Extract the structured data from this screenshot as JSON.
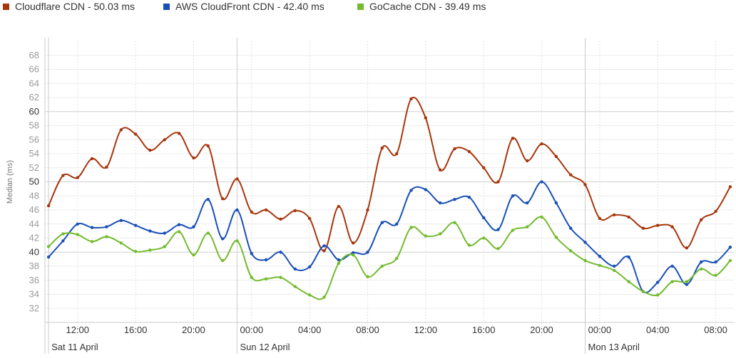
{
  "legend": [
    {
      "name": "Cloudflare CDN - 50.03 ms",
      "color": "#a8360c"
    },
    {
      "name": "AWS CloudFront CDN - 42.40 ms",
      "color": "#1950b8"
    },
    {
      "name": "GoCache CDN - 39.49 ms",
      "color": "#73bb2e"
    }
  ],
  "chart_data": {
    "type": "line",
    "ylabel": "Median (ms)",
    "ylim": [
      30,
      70
    ],
    "yticks": [
      32,
      34,
      36,
      38,
      40,
      42,
      44,
      46,
      48,
      50,
      52,
      54,
      56,
      58,
      60,
      62,
      64,
      66,
      68
    ],
    "major_yticks": [
      40,
      50,
      60
    ],
    "x_unit": "hours since Sat 11 April 00:00",
    "xlim": [
      9.75,
      57.25
    ],
    "time_labels": [
      {
        "h": 12,
        "label": "12:00"
      },
      {
        "h": 16,
        "label": "16:00"
      },
      {
        "h": 20,
        "label": "20:00"
      },
      {
        "h": 24,
        "label": "00:00"
      },
      {
        "h": 28,
        "label": "04:00"
      },
      {
        "h": 32,
        "label": "08:00"
      },
      {
        "h": 36,
        "label": "12:00"
      },
      {
        "h": 40,
        "label": "16:00"
      },
      {
        "h": 44,
        "label": "20:00"
      },
      {
        "h": 48,
        "label": "00:00"
      },
      {
        "h": 52,
        "label": "04:00"
      },
      {
        "h": 56,
        "label": "08:00"
      }
    ],
    "day_labels": [
      {
        "h": 10,
        "label": "Sat 11 April"
      },
      {
        "h": 23,
        "label": "Sun 12 April"
      },
      {
        "h": 47,
        "label": "Mon 13 April"
      }
    ],
    "x": [
      10,
      11,
      12,
      13,
      14,
      15,
      16,
      17,
      18,
      19,
      20,
      21,
      22,
      23,
      24,
      25,
      26,
      27,
      28,
      29,
      30,
      31,
      32,
      33,
      34,
      35,
      36,
      37,
      38,
      39,
      40,
      41,
      42,
      43,
      44,
      45,
      46,
      47,
      48,
      49,
      50,
      51,
      52,
      53,
      54,
      55,
      56,
      57
    ],
    "series": [
      {
        "name": "Cloudflare CDN",
        "color": "#a8360c",
        "values": [
          46.6,
          50.9,
          50.6,
          53.3,
          52.1,
          57.4,
          56.8,
          54.5,
          56.0,
          56.9,
          53.4,
          55.1,
          47.6,
          50.4,
          45.7,
          46.0,
          44.7,
          45.9,
          44.8,
          40.2,
          46.5,
          41.3,
          46.0,
          54.8,
          54.0,
          61.8,
          59.1,
          51.7,
          54.7,
          54.3,
          52.0,
          50.0,
          56.2,
          53.0,
          55.4,
          53.6,
          51.0,
          49.6,
          44.8,
          45.3,
          45.0,
          43.4,
          43.8,
          43.6,
          40.6,
          44.6,
          45.8,
          49.3
        ]
      },
      {
        "name": "AWS CloudFront CDN",
        "color": "#1950b8",
        "values": [
          39.3,
          41.6,
          44.0,
          43.5,
          43.6,
          44.5,
          43.8,
          43.0,
          42.7,
          43.9,
          43.6,
          47.5,
          41.9,
          46.0,
          39.8,
          38.9,
          40.0,
          37.6,
          37.9,
          40.9,
          38.9,
          39.9,
          40.0,
          44.2,
          44.0,
          48.8,
          48.9,
          47.0,
          47.5,
          47.8,
          44.9,
          43.2,
          48.0,
          47.0,
          50.0,
          47.0,
          43.4,
          41.4,
          39.4,
          38.0,
          39.3,
          34.4,
          35.7,
          38.0,
          35.4,
          38.6,
          38.6,
          40.7
        ]
      },
      {
        "name": "GoCache CDN",
        "color": "#73bb2e",
        "values": [
          40.8,
          42.6,
          42.5,
          41.5,
          42.2,
          41.3,
          40.1,
          40.3,
          40.8,
          42.9,
          39.6,
          42.7,
          38.8,
          41.6,
          36.4,
          36.2,
          36.4,
          35.1,
          33.9,
          33.6,
          38.4,
          39.6,
          36.5,
          38.0,
          39.1,
          43.5,
          42.3,
          42.6,
          44.2,
          41.0,
          42.0,
          40.5,
          43.1,
          43.6,
          45.0,
          42.1,
          40.2,
          38.8,
          38.1,
          37.4,
          35.8,
          34.4,
          33.9,
          35.8,
          35.8,
          37.6,
          36.7,
          38.8
        ]
      }
    ],
    "grid": true,
    "legend_position": "top-left"
  }
}
